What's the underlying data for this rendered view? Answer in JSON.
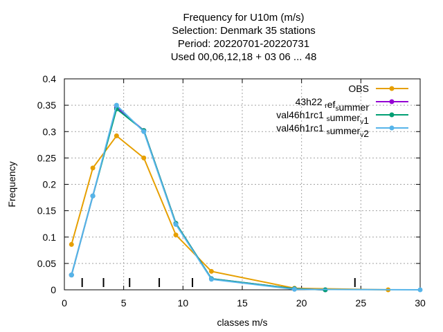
{
  "chart_data": {
    "type": "line",
    "title_lines": [
      "Frequency  for U10m (m/s)",
      "Selection: Denmark     35 stations",
      "Period: 20220701-20220731",
      "Used  00,06,12,18  + 03 06 ... 48"
    ],
    "xlabel": "classes m/s",
    "ylabel": "Frequency",
    "xlim": [
      0,
      30
    ],
    "ylim": [
      0,
      0.4
    ],
    "xticks": [
      0,
      5,
      10,
      15,
      20,
      25,
      30
    ],
    "xtick_labels": [
      "0",
      "5",
      "10",
      "15",
      "20",
      "25",
      "30"
    ],
    "yticks": [
      0,
      0.05,
      0.1,
      0.15,
      0.2,
      0.25,
      0.3,
      0.35,
      0.4
    ],
    "ytick_labels": [
      "0",
      "0.05",
      "0.1",
      "0.15",
      "0.2",
      "0.25",
      "0.3",
      "0.35",
      "0.4"
    ],
    "grid": true,
    "legend_position": "top-right",
    "class_boundaries": [
      1.5,
      3.3,
      5.5,
      8.0,
      10.8,
      24.5
    ],
    "series": [
      {
        "name": "OBS",
        "legend_parts": [
          [
            "OBS",
            false
          ]
        ],
        "color": "#E69F00",
        "marker": "circle",
        "x": [
          0.6,
          2.4,
          4.4,
          6.7,
          9.4,
          12.4,
          19.4,
          27.3
        ],
        "y": [
          0.086,
          0.231,
          0.292,
          0.25,
          0.104,
          0.035,
          0.003,
          0.0
        ]
      },
      {
        "name": "43h22_ref_summer",
        "legend_parts": [
          [
            "43h22 ",
            false
          ],
          [
            "r",
            true
          ],
          [
            "ef",
            false
          ],
          [
            "s",
            true
          ],
          [
            "ummer",
            false
          ]
        ],
        "color": "#9400D3",
        "marker": "circle",
        "x": [
          0.6,
          2.4,
          4.4,
          6.7,
          9.4,
          12.4,
          19.4,
          22.0
        ],
        "y": [
          0.028,
          0.178,
          0.346,
          0.302,
          0.126,
          0.021,
          0.002,
          0.0
        ]
      },
      {
        "name": "val46h1rc1_summer_v1",
        "legend_parts": [
          [
            "val46h1rc1 ",
            false
          ],
          [
            "s",
            true
          ],
          [
            "ummer",
            false
          ],
          [
            "v",
            true
          ],
          [
            "1",
            false
          ]
        ],
        "color": "#009E73",
        "marker": "circle",
        "x": [
          0.6,
          2.4,
          4.4,
          6.7,
          9.4,
          12.4,
          19.4,
          22.0
        ],
        "y": [
          0.028,
          0.178,
          0.343,
          0.302,
          0.126,
          0.021,
          0.002,
          0.0
        ]
      },
      {
        "name": "val46h1rc1_summer_v2",
        "legend_parts": [
          [
            "val46h1rc1 ",
            false
          ],
          [
            "s",
            true
          ],
          [
            "ummer",
            false
          ],
          [
            "v",
            true
          ],
          [
            "2",
            false
          ]
        ],
        "color": "#56B4E9",
        "marker": "circle",
        "x": [
          0.6,
          2.4,
          4.4,
          6.7,
          9.4,
          12.4,
          19.4,
          30.0
        ],
        "y": [
          0.028,
          0.178,
          0.35,
          0.3,
          0.124,
          0.02,
          0.001,
          0.0
        ]
      }
    ]
  }
}
